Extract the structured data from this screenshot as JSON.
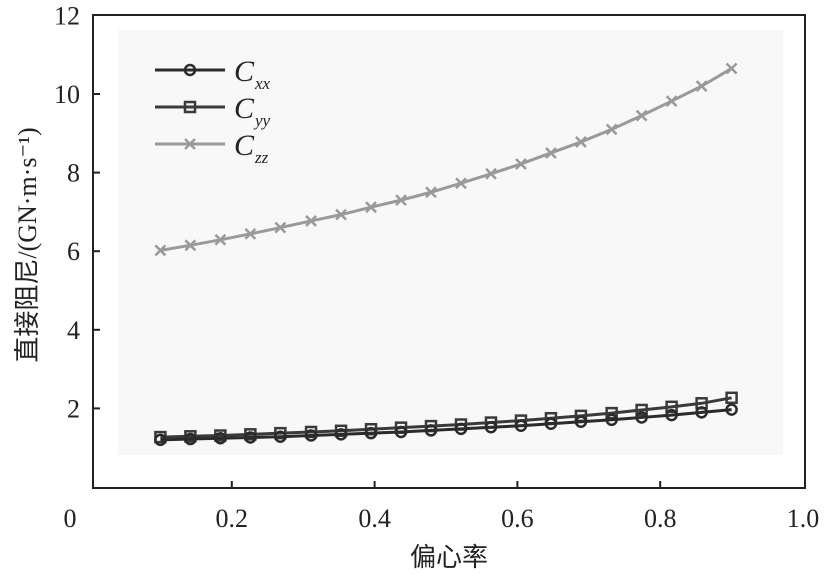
{
  "chart_data": {
    "type": "line",
    "xlabel": "偏心率",
    "ylabel": "直接阻尼/(GN·m·s⁻¹)",
    "xlim": [
      0,
      1.0
    ],
    "ylim": [
      0,
      12
    ],
    "xticks": [
      "0",
      "0.2",
      "0.4",
      "0.6",
      "0.8",
      "1.0"
    ],
    "xtick_values": [
      0,
      0.2,
      0.4,
      0.6,
      0.8,
      1.0
    ],
    "yticks": [
      "2",
      "4",
      "6",
      "8",
      "10",
      "12"
    ],
    "ytick_values": [
      2,
      4,
      6,
      8,
      10,
      12
    ],
    "legend_position": "top-left",
    "x": [
      0.1,
      0.142,
      0.184,
      0.226,
      0.268,
      0.311,
      0.353,
      0.395,
      0.437,
      0.479,
      0.521,
      0.563,
      0.605,
      0.647,
      0.689,
      0.732,
      0.774,
      0.816,
      0.858,
      0.9
    ],
    "series": [
      {
        "name": "C",
        "sub": "xx",
        "marker": "circle",
        "color": "#2b2b2b",
        "values": [
          1.2,
          1.22,
          1.24,
          1.26,
          1.28,
          1.31,
          1.34,
          1.37,
          1.4,
          1.44,
          1.48,
          1.52,
          1.56,
          1.61,
          1.66,
          1.71,
          1.77,
          1.83,
          1.9,
          1.97
        ]
      },
      {
        "name": "C",
        "sub": "yy",
        "marker": "square",
        "color": "#3a3a3a",
        "values": [
          1.27,
          1.29,
          1.31,
          1.34,
          1.37,
          1.4,
          1.43,
          1.47,
          1.51,
          1.55,
          1.59,
          1.64,
          1.69,
          1.75,
          1.81,
          1.88,
          1.96,
          2.04,
          2.13,
          2.27
        ]
      },
      {
        "name": "C",
        "sub": "zz",
        "marker": "x",
        "color": "#9a9a9a",
        "values": [
          6.02,
          6.15,
          6.29,
          6.44,
          6.6,
          6.77,
          6.93,
          7.12,
          7.3,
          7.5,
          7.73,
          7.97,
          8.22,
          8.5,
          8.78,
          9.1,
          9.45,
          9.82,
          10.2,
          10.65
        ]
      }
    ]
  }
}
